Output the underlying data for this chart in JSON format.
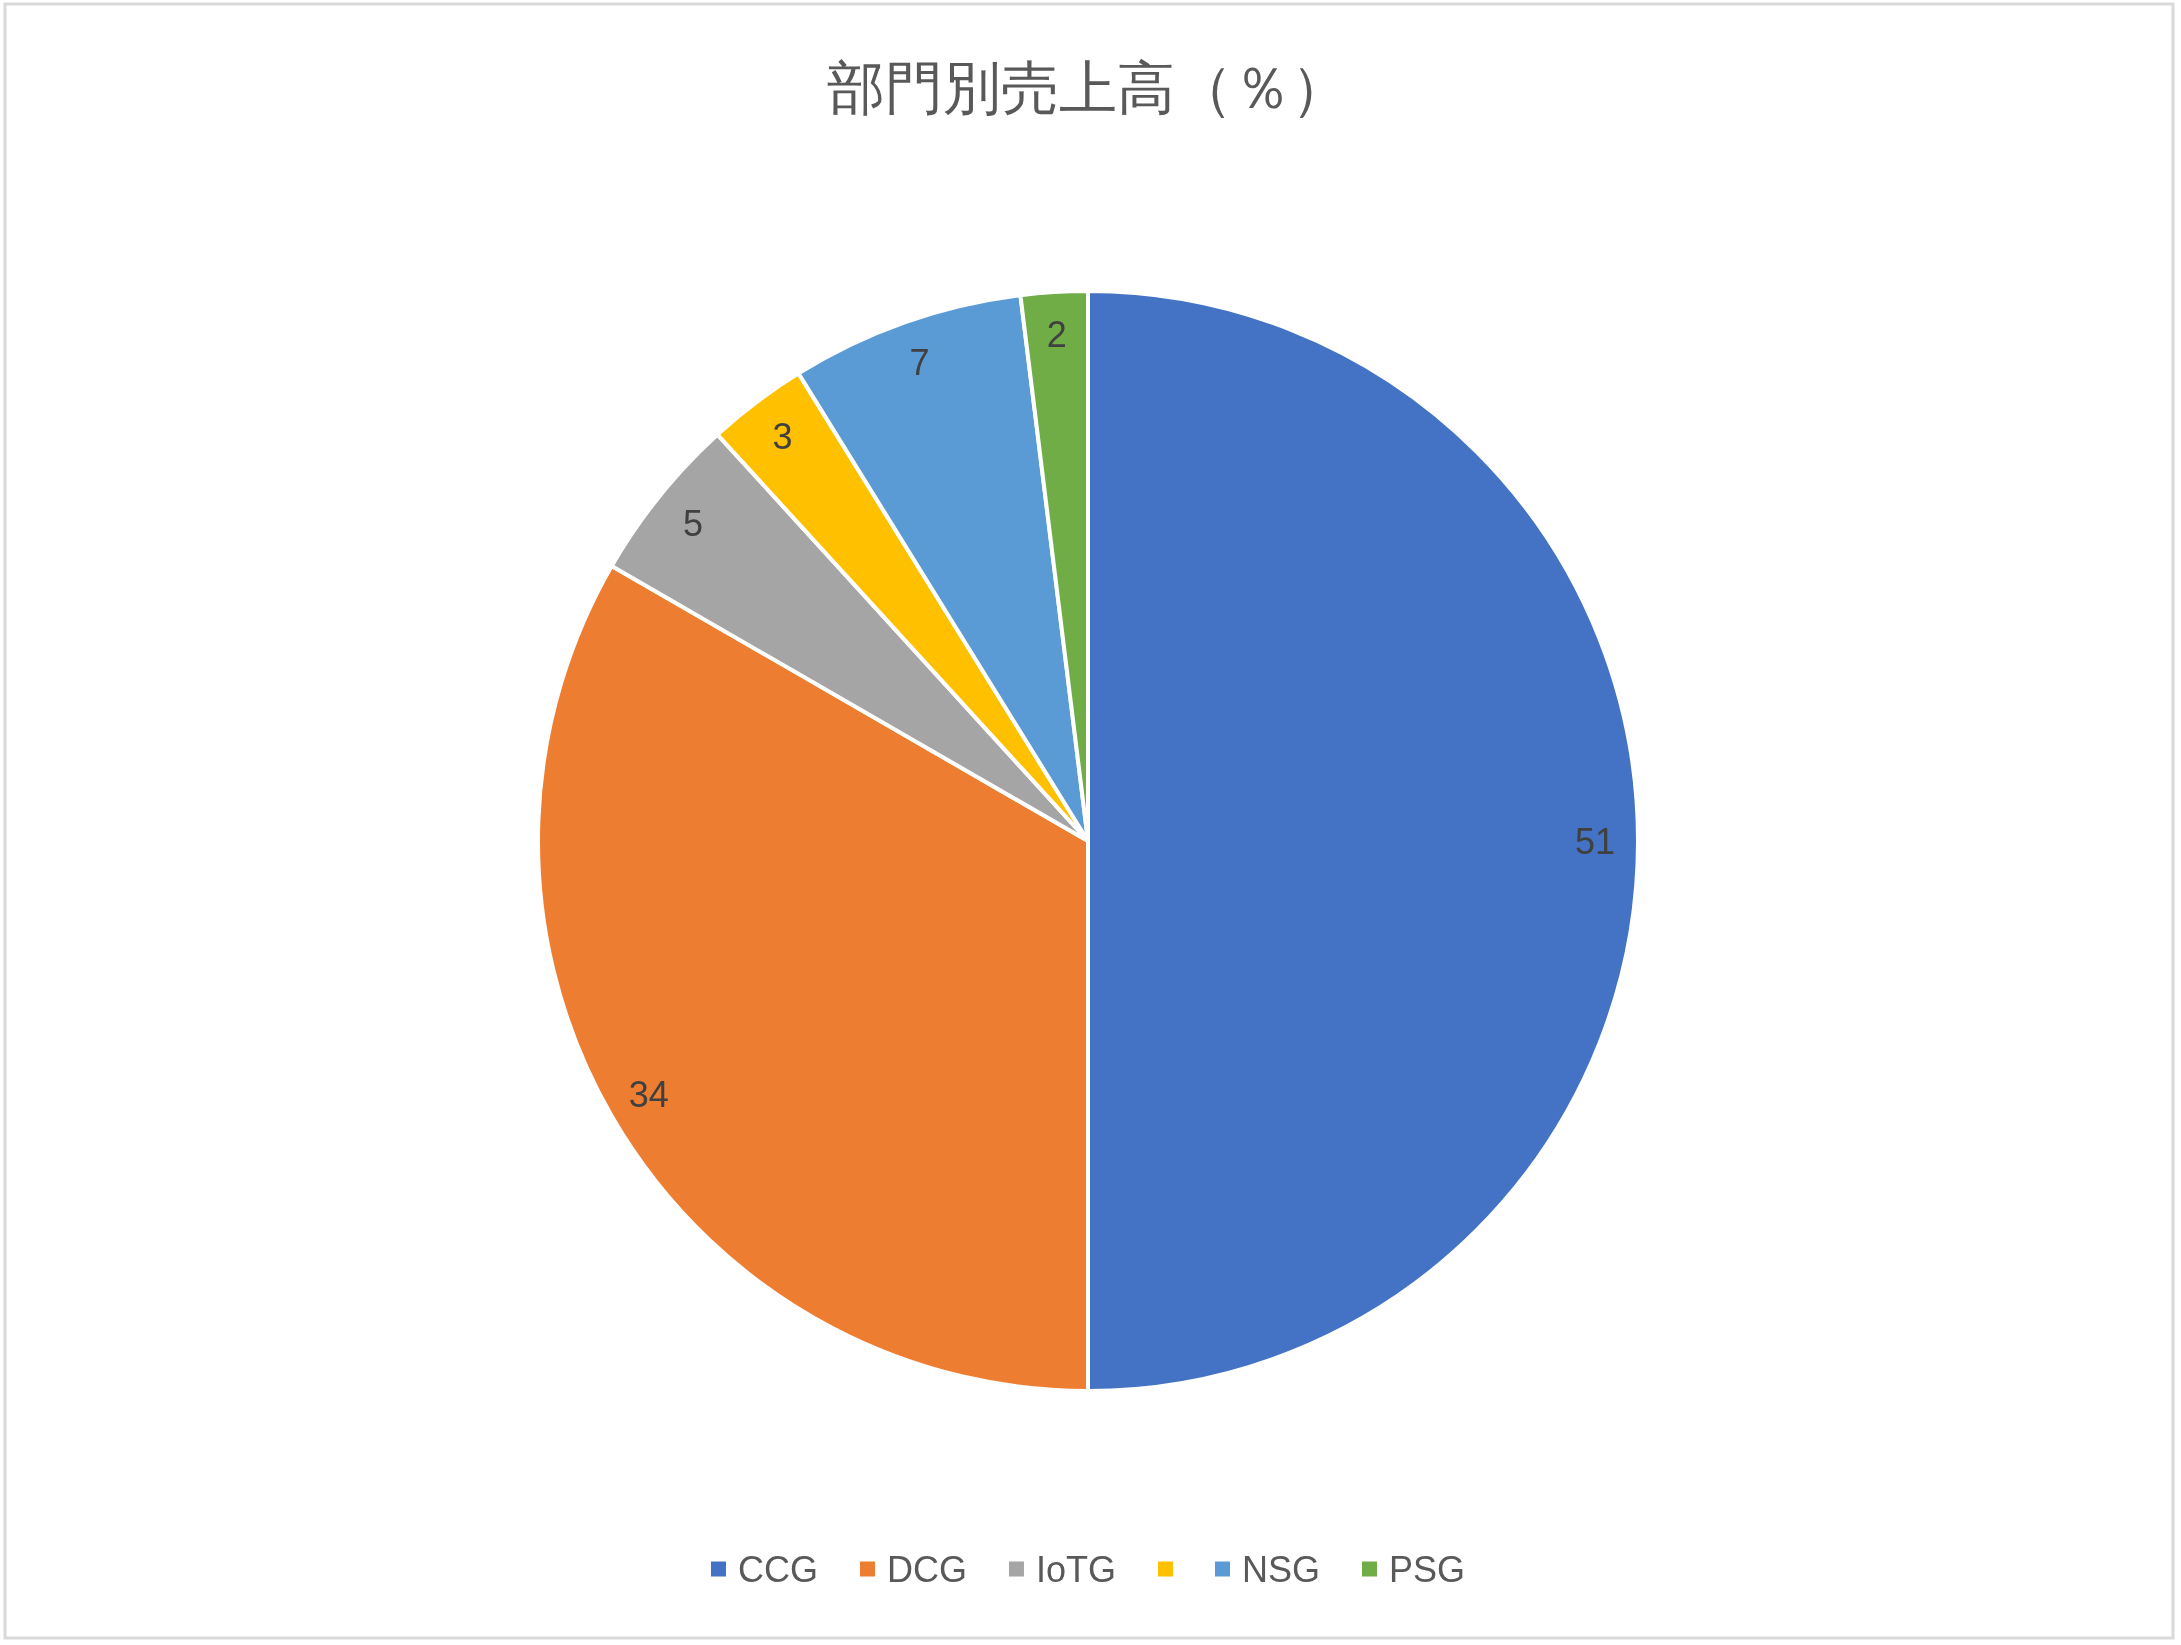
{
  "chart_data": {
    "type": "pie",
    "title": "部門別売上高（％）",
    "categories": [
      "CCG",
      "DCG",
      "IoTG",
      null,
      "NSG",
      "PSG"
    ],
    "values": [
      51,
      34,
      5,
      3,
      7,
      2
    ],
    "colors": [
      "#4472c4",
      "#ed7d31",
      "#a5a5a5",
      "#ffc000",
      "#5b9bd5",
      "#70ad47"
    ],
    "data_labels": true,
    "legend": "bottom"
  }
}
